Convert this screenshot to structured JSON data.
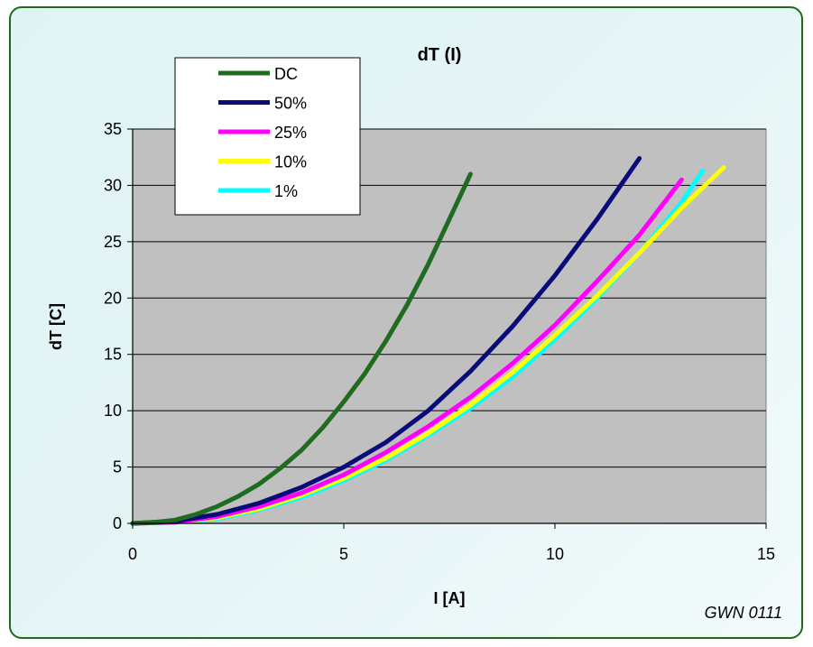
{
  "chart_data": {
    "type": "line",
    "title": "dT (I)",
    "xlabel": "I [A]",
    "ylabel": "dT [C]",
    "xlim": [
      0,
      15
    ],
    "ylim": [
      0,
      35
    ],
    "xticks": [
      "0",
      "5",
      "10",
      "15"
    ],
    "yticks": [
      "0",
      "5",
      "10",
      "15",
      "20",
      "25",
      "30",
      "35"
    ],
    "grid": "horizontal",
    "plot_background": "#c0c0c0",
    "legend_position": "top-left",
    "annotation": "GWN 0111",
    "series": [
      {
        "name": "DC",
        "color": "#1f6b1f",
        "points": [
          [
            0,
            0
          ],
          [
            0.5,
            0.1
          ],
          [
            1,
            0.3
          ],
          [
            1.5,
            0.8
          ],
          [
            2,
            1.5
          ],
          [
            2.5,
            2.4
          ],
          [
            3,
            3.5
          ],
          [
            3.5,
            4.9
          ],
          [
            4,
            6.5
          ],
          [
            4.5,
            8.5
          ],
          [
            5,
            10.8
          ],
          [
            5.5,
            13.3
          ],
          [
            6,
            16.2
          ],
          [
            6.5,
            19.4
          ],
          [
            7,
            23
          ],
          [
            7.5,
            27
          ],
          [
            8,
            31
          ]
        ]
      },
      {
        "name": "50%",
        "color": "#0a0a78",
        "points": [
          [
            0,
            0
          ],
          [
            1,
            0.2
          ],
          [
            2,
            0.8
          ],
          [
            3,
            1.8
          ],
          [
            4,
            3.2
          ],
          [
            5,
            5
          ],
          [
            6,
            7.2
          ],
          [
            7,
            10
          ],
          [
            8,
            13.5
          ],
          [
            9,
            17.5
          ],
          [
            10,
            22
          ],
          [
            11,
            27
          ],
          [
            12,
            32.4
          ]
        ]
      },
      {
        "name": "25%",
        "color": "#ff00ff",
        "points": [
          [
            0,
            0
          ],
          [
            1,
            0.1
          ],
          [
            2,
            0.6
          ],
          [
            3,
            1.5
          ],
          [
            4,
            2.7
          ],
          [
            5,
            4.3
          ],
          [
            6,
            6.3
          ],
          [
            7,
            8.6
          ],
          [
            8,
            11.2
          ],
          [
            9,
            14.2
          ],
          [
            10,
            17.6
          ],
          [
            11,
            21.5
          ],
          [
            12,
            25.6
          ],
          [
            13,
            30.5
          ]
        ]
      },
      {
        "name": "10%",
        "color": "#ffff00",
        "points": [
          [
            0,
            0
          ],
          [
            1,
            0.1
          ],
          [
            2,
            0.5
          ],
          [
            3,
            1.3
          ],
          [
            4,
            2.5
          ],
          [
            5,
            4
          ],
          [
            6,
            5.8
          ],
          [
            7,
            8
          ],
          [
            8,
            10.5
          ],
          [
            9,
            13.4
          ],
          [
            10,
            16.7
          ],
          [
            11,
            20.2
          ],
          [
            12,
            24
          ],
          [
            13,
            28
          ],
          [
            14,
            31.6
          ]
        ]
      },
      {
        "name": "1%",
        "color": "#00ffff",
        "points": [
          [
            0,
            0
          ],
          [
            1,
            0.1
          ],
          [
            2,
            0.4
          ],
          [
            3,
            1.2
          ],
          [
            4,
            2.3
          ],
          [
            5,
            3.8
          ],
          [
            6,
            5.6
          ],
          [
            7,
            7.8
          ],
          [
            8,
            10.2
          ],
          [
            9,
            13
          ],
          [
            10,
            16.3
          ],
          [
            11,
            20
          ],
          [
            12,
            24
          ],
          [
            13,
            28.5
          ],
          [
            13.5,
            31.3
          ]
        ]
      }
    ]
  }
}
